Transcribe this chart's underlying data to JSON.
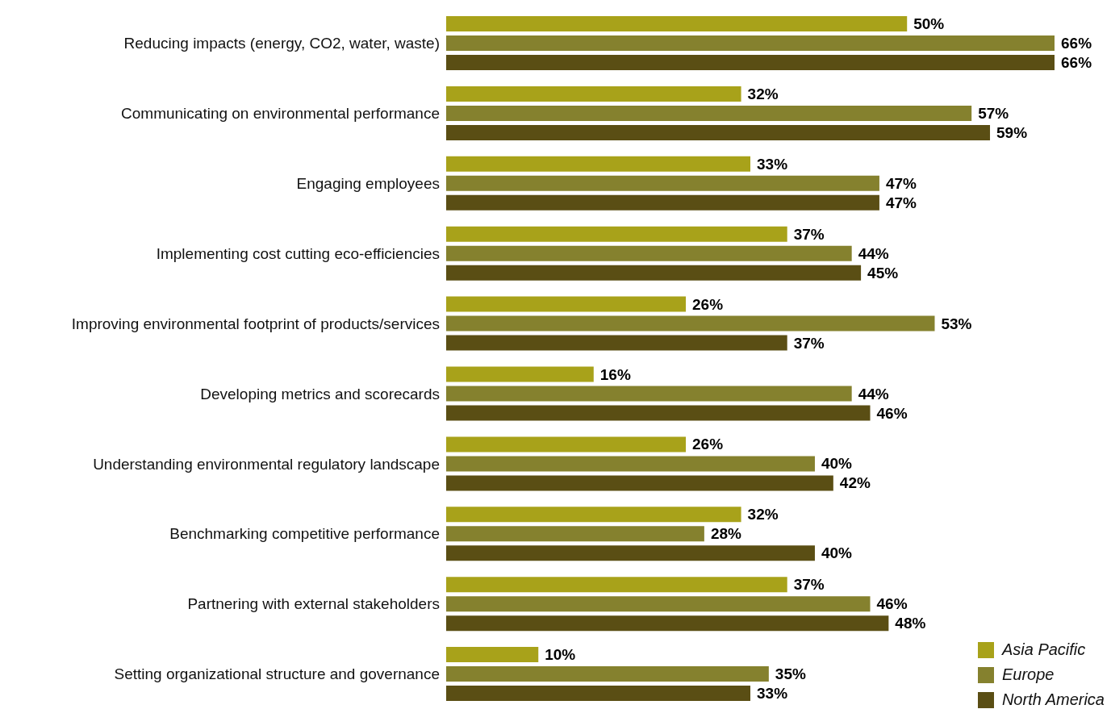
{
  "chart_data": {
    "type": "bar",
    "orientation": "horizontal",
    "legend": "bottom right",
    "categories": [
      "Reducing impacts (energy, CO2, water, waste)",
      "Communicating on environmental performance",
      "Engaging employees",
      "Implementing cost cutting eco-efficiencies",
      "Improving environmental footprint of products/services",
      "Developing metrics and scorecards",
      "Understanding environmental regulatory landscape",
      "Benchmarking competitive performance",
      "Partnering with external stakeholders",
      "Setting organizational structure and governance"
    ],
    "series": [
      {
        "name": "Asia Pacific",
        "color": "#a8a21a",
        "values": [
          50,
          32,
          33,
          37,
          26,
          16,
          26,
          32,
          37,
          10
        ],
        "value_labels": [
          "50%",
          "32%",
          "33%",
          "37%",
          "26%",
          "16%",
          "26%",
          "32%",
          "37%",
          "10%"
        ]
      },
      {
        "name": "Europe",
        "color": "#85812e",
        "values": [
          66,
          57,
          47,
          44,
          53,
          44,
          40,
          28,
          46,
          35
        ],
        "value_labels": [
          "66%",
          "57%",
          "47%",
          "44%",
          "53%",
          "44%",
          "40%",
          "28%",
          "46%",
          "35%"
        ]
      },
      {
        "name": "North America",
        "color": "#5a4e14",
        "values": [
          66,
          59,
          47,
          45,
          37,
          46,
          42,
          40,
          48,
          33
        ],
        "value_labels": [
          "66%",
          "59%",
          "47%",
          "45%",
          "37%",
          "46%",
          "42%",
          "40%",
          "48%",
          "33%"
        ]
      }
    ]
  }
}
